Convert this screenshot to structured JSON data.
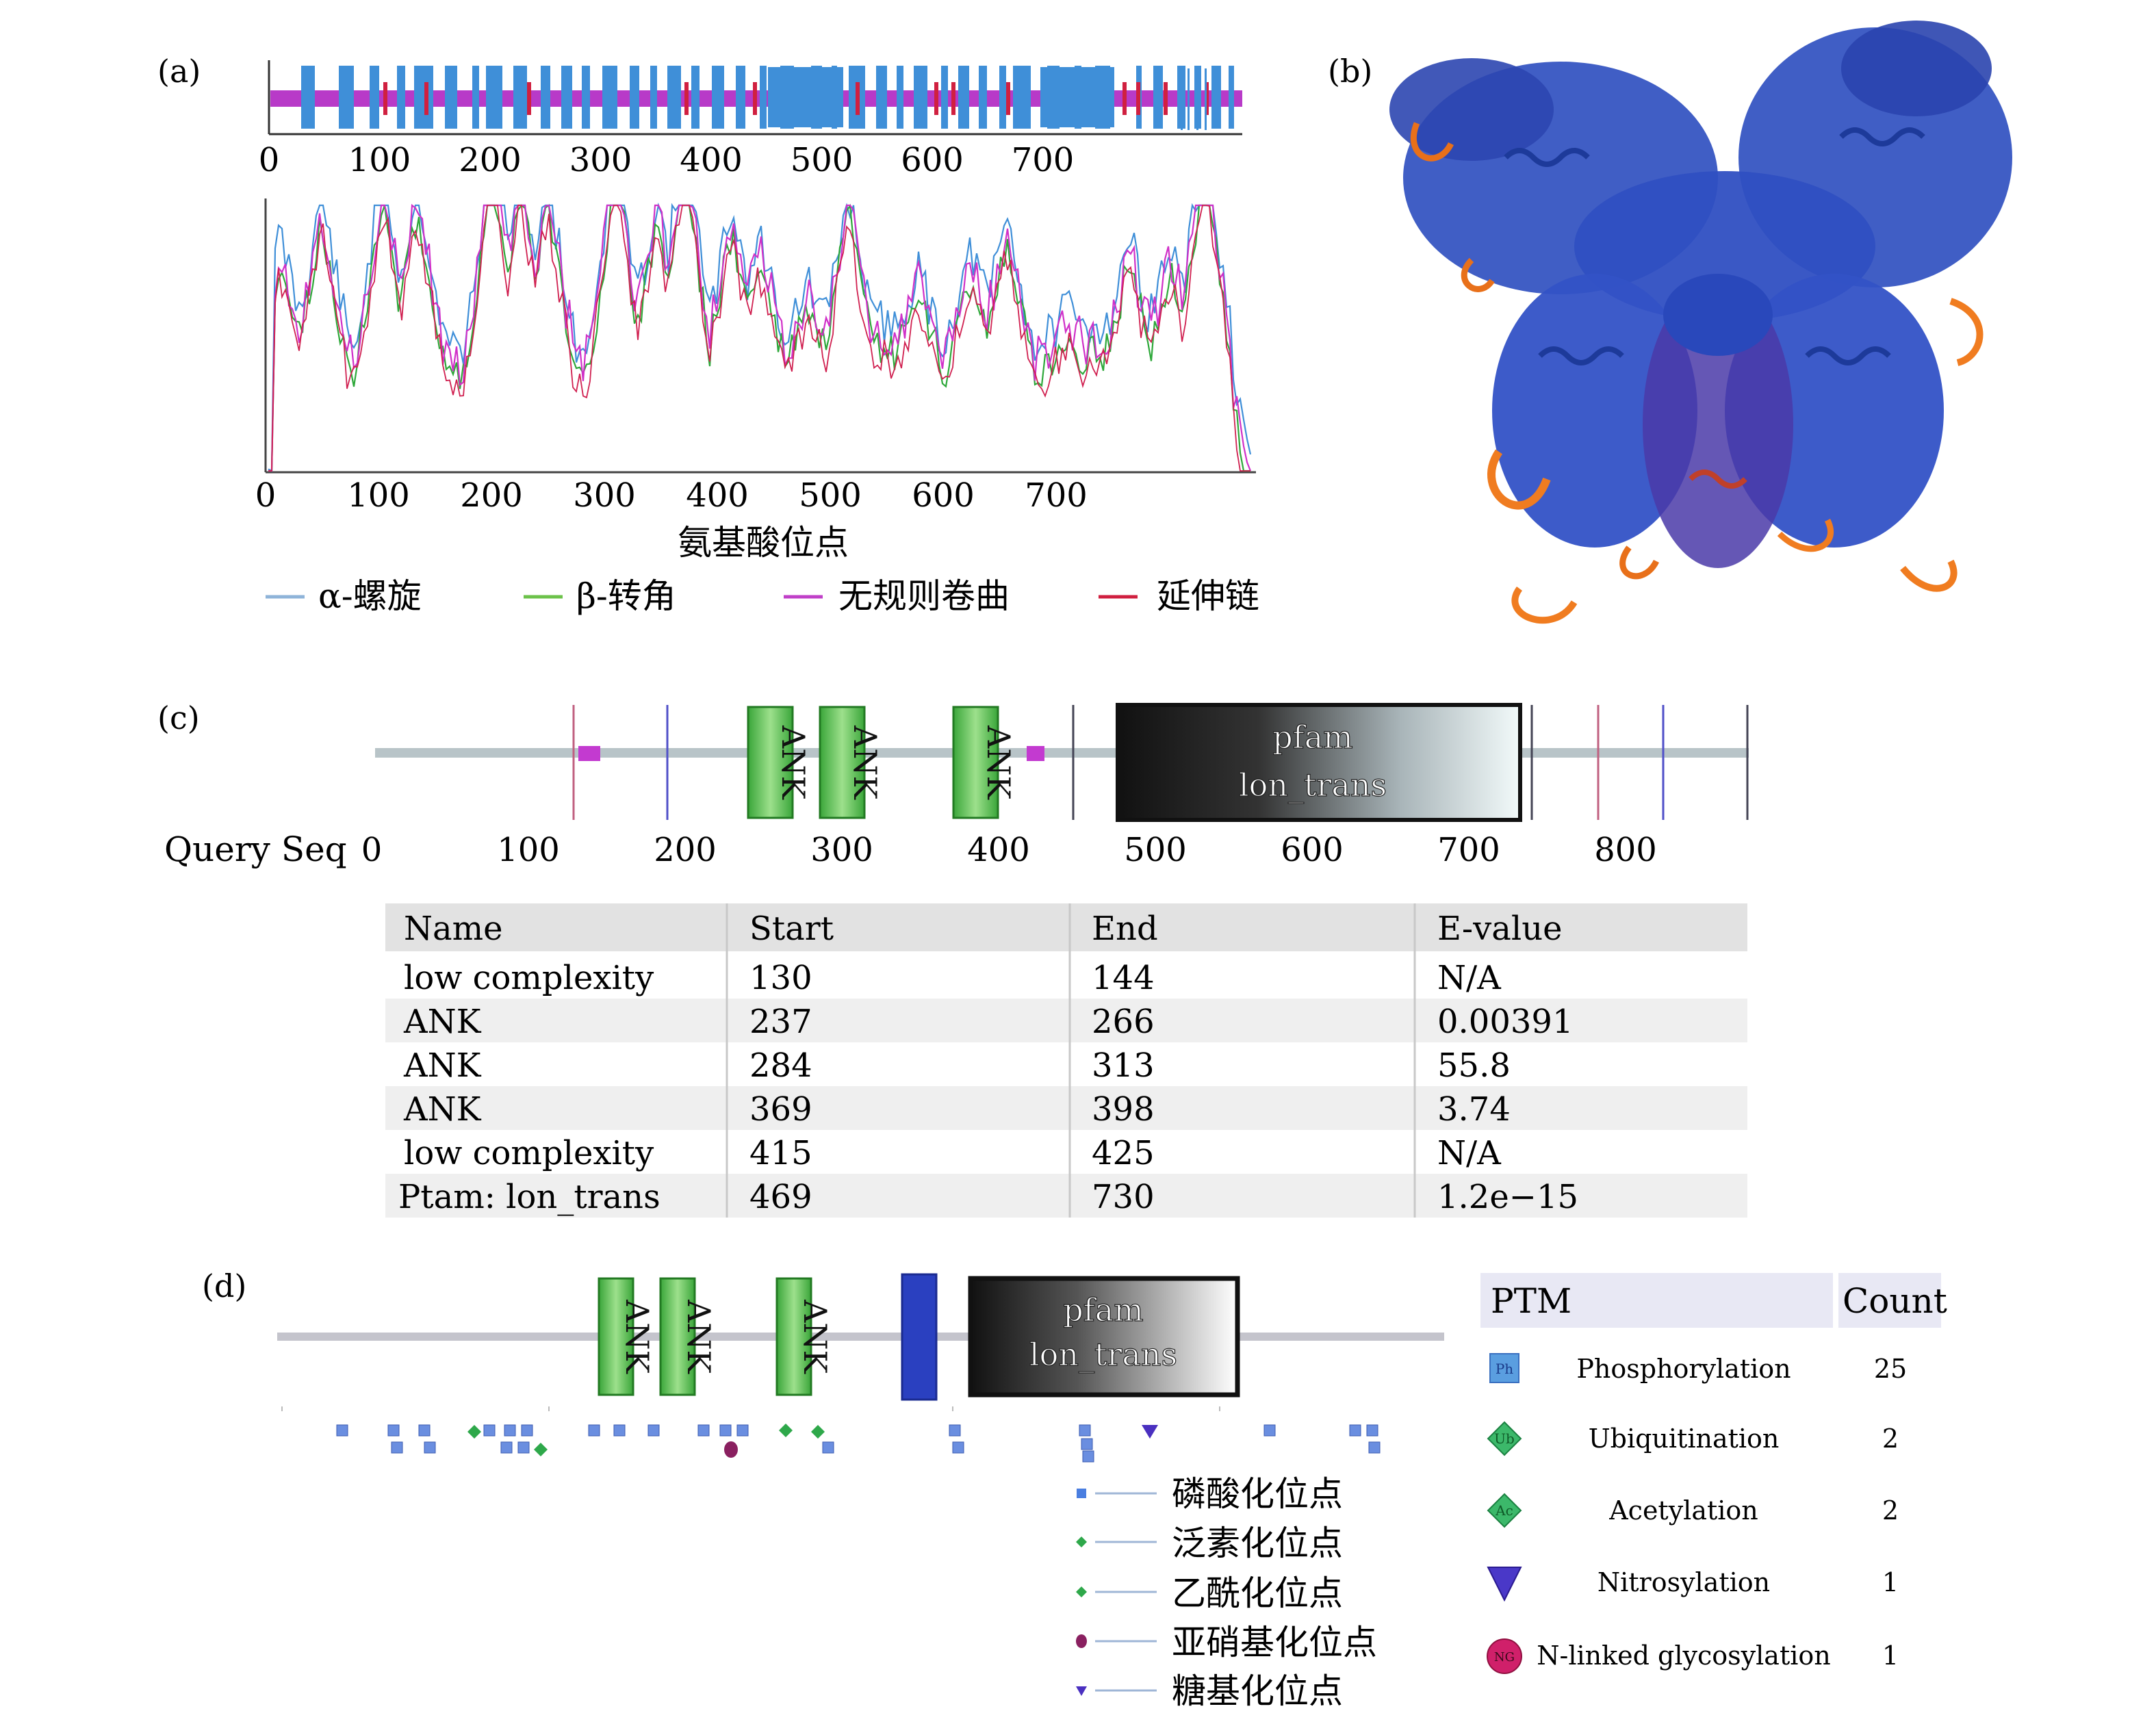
{
  "panel_a": {
    "label": "(a)",
    "tick_labels": [
      "0",
      "100",
      "200",
      "300",
      "400",
      "500",
      "600",
      "700"
    ],
    "xlabel": "氨基酸位点",
    "legend": [
      {
        "label": "α-螺旋",
        "color": "#8fb4d9"
      },
      {
        "label": "β-转角",
        "color": "#6cc24a"
      },
      {
        "label": "无规则卷曲",
        "color": "#c040c8"
      },
      {
        "label": "延伸链",
        "color": "#d02040"
      }
    ]
  },
  "panel_b": {
    "label": "(b)"
  },
  "panel_c": {
    "label": "(c)",
    "axis_title": "Query Seq",
    "tick_labels": [
      "0",
      "100",
      "200",
      "300",
      "400",
      "500",
      "600",
      "700",
      "800"
    ],
    "pfam_line1": "pfam",
    "pfam_line2": "lon_trans",
    "ank_label": "ANK",
    "table": {
      "headers": [
        "Name",
        "Start",
        "End",
        "E-value"
      ],
      "rows": [
        [
          "low complexity",
          "130",
          "144",
          "N/A"
        ],
        [
          "ANK",
          "237",
          "266",
          "0.00391"
        ],
        [
          "ANK",
          "284",
          "313",
          "55.8"
        ],
        [
          "ANK",
          "369",
          "398",
          "3.74"
        ],
        [
          "low complexity",
          "415",
          "425",
          "N/A"
        ],
        [
          "Ptam: lon_trans",
          "469",
          "730",
          "1.2e−15"
        ]
      ]
    }
  },
  "panel_d": {
    "label": "(d)",
    "pfam_line1": "pfam",
    "pfam_line2": "lon_trans",
    "ank_label": "ANK",
    "site_legend": [
      "磷酸化位点",
      "泛素化位点",
      "乙酰化位点",
      "亚硝基化位点",
      "糖基化位点"
    ],
    "ptm_table": {
      "header_ptm": "PTM",
      "header_count": "Count",
      "rows": [
        {
          "icon": "Ph",
          "name": "Phosphorylation",
          "count": "25"
        },
        {
          "icon": "Ub",
          "name": "Ubiquitination",
          "count": "2"
        },
        {
          "icon": "Ac",
          "name": "Acetylation",
          "count": "2"
        },
        {
          "icon": "",
          "name": "Nitrosylation",
          "count": "1"
        },
        {
          "icon": "NG",
          "name": "N-linked glycosylation",
          "count": "1"
        }
      ]
    }
  }
}
